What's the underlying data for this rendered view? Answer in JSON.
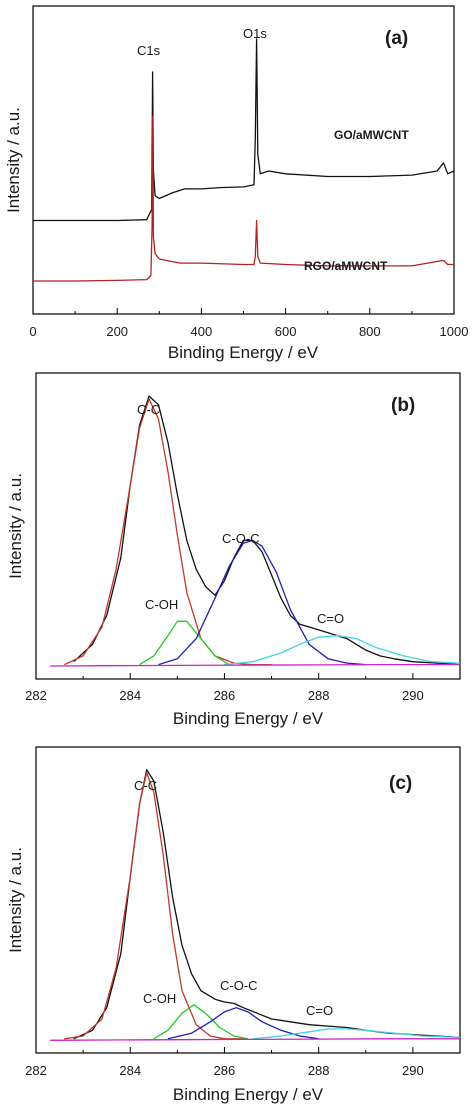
{
  "chart_data": [
    {
      "type": "line",
      "panel_label": "(a)",
      "xlabel": "Binding Energy / eV",
      "ylabel": "Intensity / a.u.",
      "xlim": [
        0,
        1000
      ],
      "xticks": [
        0,
        200,
        400,
        600,
        800,
        1000
      ],
      "annotations": [
        "C1s",
        "O1s"
      ],
      "annotation_x": [
        285,
        531
      ],
      "series": [
        {
          "name": "GO/aMWCNT",
          "color": "#111111",
          "x": [
            0,
            100,
            200,
            270,
            282,
            284,
            286,
            290,
            300,
            330,
            360,
            400,
            450,
            500,
            525,
            528,
            531,
            534,
            540,
            560,
            600,
            700,
            800,
            900,
            960,
            975,
            985,
            1000
          ],
          "y": [
            22.0,
            22.0,
            22.0,
            22.3,
            26.0,
            76.0,
            40.0,
            31.0,
            30.0,
            32.0,
            33.5,
            33.5,
            34.0,
            34.2,
            35.0,
            52.0,
            88.0,
            46.0,
            39.0,
            40.0,
            39.0,
            38.0,
            38.0,
            38.5,
            40.0,
            43.0,
            39.0,
            40.0
          ]
        },
        {
          "name": "RGO/aMWCNT",
          "color": "#b22222",
          "x": [
            0,
            100,
            200,
            270,
            280,
            283,
            284.5,
            286,
            290,
            300,
            350,
            400,
            500,
            525,
            528,
            531,
            534,
            540,
            600,
            700,
            800,
            900,
            975,
            985,
            1000
          ],
          "y": [
            0.0,
            0.0,
            0.2,
            0.5,
            2.0,
            20.0,
            60.0,
            16.0,
            10.0,
            8.0,
            6.5,
            6.5,
            6.0,
            6.0,
            9.0,
            22.0,
            9.0,
            6.5,
            6.0,
            5.5,
            5.5,
            5.5,
            7.5,
            6.0,
            6.0
          ]
        }
      ]
    },
    {
      "type": "line",
      "panel_label": "(b)",
      "xlabel": "Binding Energy / eV",
      "ylabel": "Intensity / a.u.",
      "xlim": [
        282,
        291
      ],
      "ylim": [
        0,
        100
      ],
      "xticks": [
        282,
        284,
        286,
        288,
        290
      ],
      "annotations": [
        "C-C",
        "C-OH",
        "C-O-C",
        "C=O"
      ],
      "series": [
        {
          "color": "#111111",
          "x": [
            282.8,
            283.2,
            283.5,
            283.8,
            284.0,
            284.2,
            284.4,
            284.6,
            284.8,
            285.0,
            285.2,
            285.4,
            285.6,
            285.8,
            286.0,
            286.2,
            286.4,
            286.6,
            286.8,
            287.0,
            287.2,
            287.4,
            287.6,
            287.8,
            288.0,
            288.2,
            288.4,
            288.6,
            288.8,
            289.0,
            289.3,
            289.6,
            290.0,
            290.5,
            291.0
          ],
          "y": [
            6,
            12,
            22,
            42,
            67,
            88,
            98,
            95,
            82,
            64,
            48,
            38,
            32,
            29,
            34,
            42,
            48,
            48,
            44,
            36,
            28,
            22,
            19,
            18,
            17,
            16,
            15,
            14,
            12,
            10,
            8,
            7,
            6,
            5.5,
            5
          ]
        },
        {
          "color": "#c0392b",
          "x": [
            282.6,
            283.0,
            283.4,
            283.7,
            284.0,
            284.2,
            284.4,
            284.6,
            284.8,
            285.0,
            285.2,
            285.5,
            285.8,
            286.2,
            286.6,
            287.0
          ],
          "y": [
            5,
            8,
            18,
            38,
            67,
            87,
            97,
            90,
            72,
            50,
            30,
            14,
            8,
            5.5,
            5,
            5
          ]
        },
        {
          "color": "#22cc22",
          "x": [
            284.2,
            284.5,
            284.8,
            285.0,
            285.2,
            285.5,
            285.8,
            286.1
          ],
          "y": [
            5,
            8,
            15,
            20,
            20,
            14,
            8,
            5
          ]
        },
        {
          "color": "#1f1fb0",
          "x": [
            284.6,
            285.0,
            285.4,
            285.8,
            286.1,
            286.4,
            286.6,
            286.8,
            287.1,
            287.4,
            287.8,
            288.2,
            288.6,
            289.0
          ],
          "y": [
            5,
            7,
            14,
            28,
            39,
            47,
            48,
            46,
            37,
            24,
            12,
            7,
            5.5,
            5
          ]
        },
        {
          "color": "#3fd6e0",
          "x": [
            286.0,
            286.6,
            287.2,
            287.6,
            288.0,
            288.4,
            288.8,
            289.2,
            289.8,
            290.4,
            291.0
          ],
          "y": [
            5,
            6,
            9,
            12,
            14.5,
            15,
            14,
            11,
            8,
            6,
            5.5
          ]
        },
        {
          "color": "#cc22cc",
          "x": [
            282.3,
            283.5,
            285.0,
            286.5,
            288.0,
            289.5,
            291.0
          ],
          "y": [
            4.5,
            4.6,
            4.7,
            4.8,
            4.9,
            5.0,
            5.0
          ]
        }
      ]
    },
    {
      "type": "line",
      "panel_label": "(c)",
      "xlabel": "Binding Energy / eV",
      "ylabel": "Intensity / a.u.",
      "xlim": [
        282,
        291
      ],
      "ylim": [
        0,
        100
      ],
      "xticks": [
        282,
        284,
        286,
        288,
        290
      ],
      "annotations": [
        "C-C",
        "C-OH",
        "C-O-C",
        "C=O"
      ],
      "series": [
        {
          "color": "#111111",
          "x": [
            282.8,
            283.2,
            283.5,
            283.8,
            284.0,
            284.2,
            284.35,
            284.5,
            284.7,
            284.9,
            285.1,
            285.3,
            285.5,
            285.8,
            286.0,
            286.2,
            286.4,
            286.7,
            287.0,
            287.4,
            287.8,
            288.2,
            288.6,
            289.0,
            289.5,
            290.0,
            290.5,
            291.0
          ],
          "y": [
            5,
            8,
            16,
            35,
            62,
            88,
            100,
            96,
            78,
            55,
            38,
            28,
            22,
            19,
            18,
            17.5,
            16,
            14,
            12,
            11,
            10,
            9.5,
            9,
            8,
            7,
            6.5,
            6,
            5.5
          ]
        },
        {
          "color": "#c0392b",
          "x": [
            282.6,
            283.0,
            283.4,
            283.7,
            284.0,
            284.2,
            284.35,
            284.5,
            284.7,
            284.9,
            285.1,
            285.4,
            285.7,
            286.0,
            286.5
          ],
          "y": [
            5,
            6,
            12,
            30,
            62,
            88,
            99,
            92,
            70,
            42,
            22,
            10,
            6,
            5,
            5
          ]
        },
        {
          "color": "#22cc22",
          "x": [
            284.5,
            284.8,
            285.1,
            285.35,
            285.6,
            285.9,
            286.2,
            286.5
          ],
          "y": [
            5,
            8,
            14,
            17,
            14,
            9,
            6,
            5
          ]
        },
        {
          "color": "#1f1fb0",
          "x": [
            284.8,
            285.3,
            285.7,
            286.0,
            286.25,
            286.5,
            286.8,
            287.2,
            287.6,
            288.0
          ],
          "y": [
            5,
            7,
            11,
            14.5,
            16,
            14.5,
            11,
            8,
            6,
            5
          ]
        },
        {
          "color": "#3fd6e0",
          "x": [
            286.6,
            287.2,
            287.8,
            288.2,
            288.6,
            289.0,
            289.6,
            290.2,
            291.0
          ],
          "y": [
            5,
            6,
            7.5,
            8.5,
            8.5,
            8,
            7,
            6,
            5.5
          ]
        },
        {
          "color": "#cc22cc",
          "x": [
            282.3,
            283.5,
            285.0,
            286.5,
            288.0,
            289.5,
            291.0
          ],
          "y": [
            4.5,
            4.6,
            4.7,
            4.8,
            4.9,
            5.0,
            5.0
          ]
        }
      ]
    }
  ]
}
